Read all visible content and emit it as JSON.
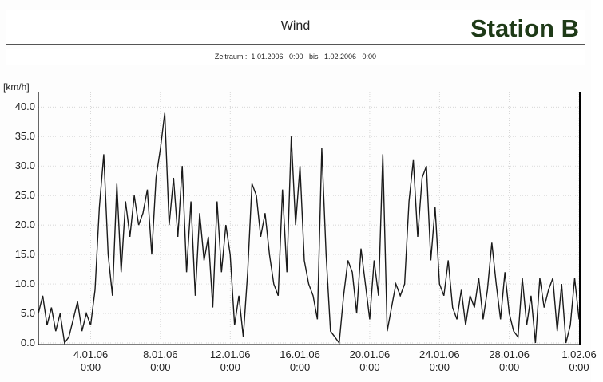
{
  "chart_data": {
    "type": "line",
    "title": "Wind",
    "station": "Station B",
    "subtitle": "Zeitraum :  1.01.2006   0:00   bis   1.02.2006   0:00",
    "y_label": "[km/h]",
    "color": "#1a1a1a",
    "grid": true,
    "xlim": [
      "1.01.06 0:00",
      "1.02.06 0:00"
    ],
    "xticks": [
      "4.01.06 0:00",
      "8.01.06 0:00",
      "12.01.06 0:00",
      "16.01.06 0:00",
      "20.01.06 0:00",
      "24.01.06 0:00",
      "28.01.06 0:00",
      "1.02.06 0:00"
    ],
    "ylim": [
      0,
      42.6
    ],
    "yticks": [
      {
        "value": 0,
        "label": "0.0"
      },
      {
        "value": 5,
        "label": "5.0"
      },
      {
        "value": 10,
        "label": "10.0"
      },
      {
        "value": 15,
        "label": "15.0"
      },
      {
        "value": 20,
        "label": "20.0"
      },
      {
        "value": 25,
        "label": "25.0"
      },
      {
        "value": 30,
        "label": "30.0"
      },
      {
        "value": 35,
        "label": "35.0"
      },
      {
        "value": 40,
        "label": "40.0"
      }
    ],
    "x": [
      "1.01.06 0:00",
      "1.01.06 6:00",
      "1.01.06 12:00",
      "1.01.06 18:00",
      "2.01.06 0:00",
      "2.01.06 6:00",
      "2.01.06 12:00",
      "2.01.06 18:00",
      "3.01.06 0:00",
      "3.01.06 6:00",
      "3.01.06 12:00",
      "3.01.06 18:00",
      "4.01.06 0:00",
      "4.01.06 6:00",
      "4.01.06 12:00",
      "4.01.06 18:00",
      "5.01.06 0:00",
      "5.01.06 6:00",
      "5.01.06 12:00",
      "5.01.06 18:00",
      "6.01.06 0:00",
      "6.01.06 6:00",
      "6.01.06 12:00",
      "6.01.06 18:00",
      "7.01.06 0:00",
      "7.01.06 6:00",
      "7.01.06 12:00",
      "7.01.06 18:00",
      "8.01.06 0:00",
      "8.01.06 6:00",
      "8.01.06 12:00",
      "8.01.06 18:00",
      "9.01.06 0:00",
      "9.01.06 6:00",
      "9.01.06 12:00",
      "9.01.06 18:00",
      "10.01.06 0:00",
      "10.01.06 6:00",
      "10.01.06 12:00",
      "10.01.06 18:00",
      "11.01.06 0:00",
      "11.01.06 6:00",
      "11.01.06 12:00",
      "11.01.06 18:00",
      "12.01.06 0:00",
      "12.01.06 6:00",
      "12.01.06 12:00",
      "12.01.06 18:00",
      "13.01.06 0:00",
      "13.01.06 6:00",
      "13.01.06 12:00",
      "13.01.06 18:00",
      "14.01.06 0:00",
      "14.01.06 6:00",
      "14.01.06 12:00",
      "14.01.06 18:00",
      "15.01.06 0:00",
      "15.01.06 6:00",
      "15.01.06 12:00",
      "15.01.06 18:00",
      "16.01.06 0:00",
      "16.01.06 6:00",
      "16.01.06 12:00",
      "16.01.06 18:00",
      "17.01.06 0:00",
      "17.01.06 6:00",
      "17.01.06 12:00",
      "17.01.06 18:00",
      "18.01.06 0:00",
      "18.01.06 6:00",
      "18.01.06 12:00",
      "18.01.06 18:00",
      "19.01.06 0:00",
      "19.01.06 6:00",
      "19.01.06 12:00",
      "19.01.06 18:00",
      "20.01.06 0:00",
      "20.01.06 6:00",
      "20.01.06 12:00",
      "20.01.06 18:00",
      "21.01.06 0:00",
      "21.01.06 6:00",
      "21.01.06 12:00",
      "21.01.06 18:00",
      "22.01.06 0:00",
      "22.01.06 6:00",
      "22.01.06 12:00",
      "22.01.06 18:00",
      "23.01.06 0:00",
      "23.01.06 6:00",
      "23.01.06 12:00",
      "23.01.06 18:00",
      "24.01.06 0:00",
      "24.01.06 6:00",
      "24.01.06 12:00",
      "24.01.06 18:00",
      "25.01.06 0:00",
      "25.01.06 6:00",
      "25.01.06 12:00",
      "25.01.06 18:00",
      "26.01.06 0:00",
      "26.01.06 6:00",
      "26.01.06 12:00",
      "26.01.06 18:00",
      "27.01.06 0:00",
      "27.01.06 6:00",
      "27.01.06 12:00",
      "27.01.06 18:00",
      "28.01.06 0:00",
      "28.01.06 6:00",
      "28.01.06 12:00",
      "28.01.06 18:00",
      "29.01.06 0:00",
      "29.01.06 6:00",
      "29.01.06 12:00",
      "29.01.06 18:00",
      "30.01.06 0:00",
      "30.01.06 6:00",
      "30.01.06 12:00",
      "30.01.06 18:00",
      "31.01.06 0:00",
      "31.01.06 6:00",
      "31.01.06 12:00",
      "31.01.06 18:00",
      "1.02.06 0:00"
    ],
    "values": [
      5,
      8,
      3,
      6,
      2,
      5,
      0,
      1,
      4,
      7,
      2,
      5,
      3,
      9,
      23,
      32,
      15,
      8,
      27,
      12,
      24,
      18,
      25,
      20,
      22,
      26,
      15,
      28,
      33,
      39,
      20,
      28,
      18,
      30,
      12,
      24,
      8,
      22,
      14,
      18,
      6,
      24,
      12,
      20,
      15,
      3,
      8,
      1,
      12,
      27,
      25,
      18,
      22,
      15,
      10,
      8,
      26,
      12,
      35,
      20,
      30,
      14,
      10,
      8,
      4,
      33,
      15,
      2,
      1,
      0,
      8,
      14,
      12,
      5,
      16,
      10,
      4,
      14,
      8,
      32,
      2,
      6,
      10,
      8,
      10,
      24,
      31,
      18,
      28,
      30,
      14,
      23,
      10,
      8,
      14,
      6,
      4,
      9,
      3,
      8,
      6,
      11,
      4,
      9,
      17,
      10,
      4,
      12,
      5,
      2,
      1,
      11,
      3,
      8,
      0,
      11,
      6,
      9,
      11,
      2,
      10,
      0,
      3,
      11,
      4
    ]
  }
}
